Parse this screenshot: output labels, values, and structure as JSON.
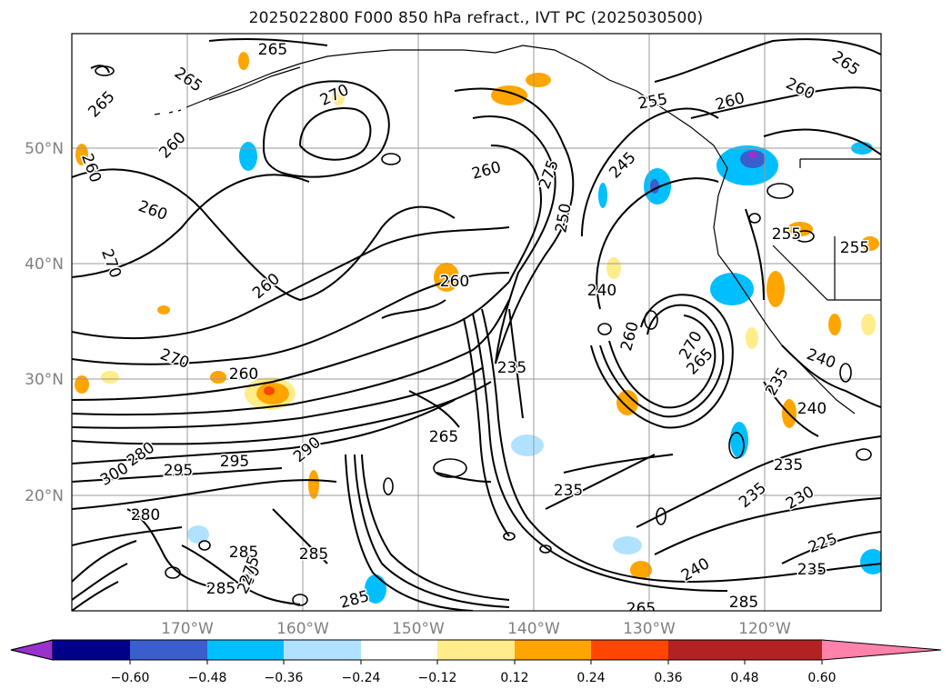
{
  "title": "2025022800 F000 850 hPa refract., IVT PC (2025030500)",
  "latitude_labels": [
    "50°N",
    "40°N",
    "30°N",
    "20°N"
  ],
  "longitude_labels": [
    "170°W",
    "160°W",
    "150°W",
    "140°W",
    "130°W",
    "120°W"
  ],
  "colorbar": {
    "tick_labels": [
      "−0.60",
      "−0.48",
      "−0.36",
      "−0.24",
      "−0.12",
      "0.12",
      "0.24",
      "0.36",
      "0.48",
      "0.60"
    ],
    "colors": [
      "#9932cc",
      "#00008b",
      "#3a5fcd",
      "#00bfff",
      "#b0e2ff",
      "#ffffff",
      "#ffec8b",
      "#ffa500",
      "#ff4500",
      "#b22222",
      "#ff82ab"
    ]
  },
  "contour_labels": [
    "265",
    "265",
    "265",
    "270",
    "265",
    "260",
    "260",
    "260",
    "260",
    "270",
    "260",
    "270",
    "260",
    "275",
    "250",
    "255",
    "260",
    "260",
    "245",
    "240",
    "260",
    "270",
    "265",
    "255",
    "255",
    "240",
    "235",
    "235",
    "240",
    "260",
    "235",
    "235",
    "225",
    "230",
    "235",
    "235",
    "285",
    "280",
    "295",
    "300",
    "290",
    "295",
    "280",
    "285",
    "285",
    "280",
    "285",
    "265",
    "265",
    "285",
    "275",
    "240"
  ],
  "colors": {
    "shade_blue": "#00bfff",
    "shade_orange": "#ffa500",
    "grid": "#999999",
    "axis_label": "#808080"
  }
}
